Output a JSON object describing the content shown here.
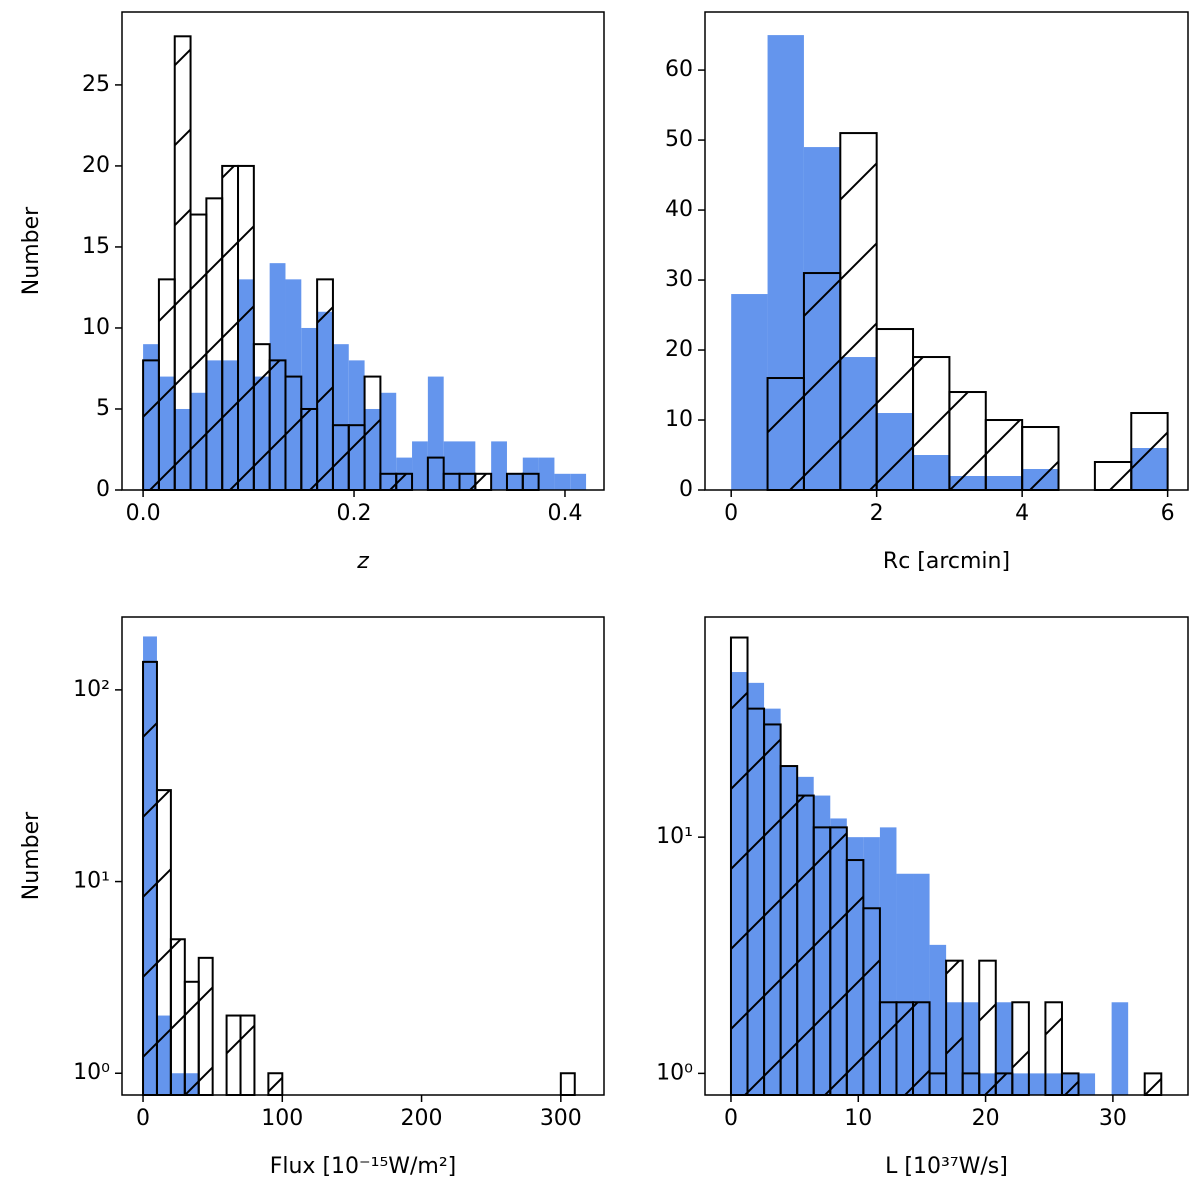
{
  "chart_data": [
    {
      "type": "histogram",
      "xlabel": "z",
      "xlabel_style": "italic",
      "ylabel": "Number",
      "bins": [
        0,
        0.015,
        0.03,
        0.045,
        0.06,
        0.075,
        0.09,
        0.105,
        0.12,
        0.135,
        0.15,
        0.165,
        0.18,
        0.195,
        0.21,
        0.225,
        0.24,
        0.255,
        0.27,
        0.285,
        0.3,
        0.315,
        0.33,
        0.345,
        0.36,
        0.375,
        0.39,
        0.405,
        0.42
      ],
      "series": [
        {
          "color": "#6495ed",
          "values": [
            9,
            7,
            5,
            6,
            8,
            8,
            13,
            7,
            14,
            13,
            10,
            11,
            9,
            8,
            5,
            6,
            2,
            3,
            7,
            3,
            3,
            0,
            3,
            1,
            2,
            2,
            1,
            1
          ]
        },
        {
          "color": "#000000",
          "hatch": "/",
          "values": [
            8,
            13,
            28,
            17,
            18,
            20,
            20,
            9,
            8,
            7,
            5,
            13,
            4,
            4,
            7,
            1,
            1,
            0,
            2,
            1,
            1,
            1,
            0,
            1,
            1,
            0,
            0,
            0
          ]
        }
      ],
      "xlim": [
        -0.02,
        0.437
      ],
      "xticks": [
        {
          "value": 0,
          "label": "0.0"
        },
        0.2,
        0.4
      ],
      "ylim": [
        0,
        29.5
      ],
      "yticks": [
        0,
        5,
        10,
        15,
        20,
        25
      ]
    },
    {
      "type": "histogram",
      "xlabel": "Rc [arcmin]",
      "bins": [
        0,
        0.5,
        1,
        1.5,
        2,
        2.5,
        3,
        3.5,
        4,
        4.5,
        5,
        5.5,
        6
      ],
      "series": [
        {
          "color": "#6495ed",
          "values": [
            28,
            65,
            49,
            19,
            11,
            5,
            2,
            2,
            3,
            0,
            0,
            6
          ]
        },
        {
          "color": "#000000",
          "hatch": "/",
          "values": [
            0,
            16,
            31,
            51,
            23,
            19,
            14,
            10,
            9,
            0,
            4,
            11
          ]
        }
      ],
      "xlim": [
        -0.36,
        6.28
      ],
      "xticks": [
        0,
        2,
        4,
        6
      ],
      "ylim": [
        0,
        68.3
      ],
      "yticks": [
        0,
        10,
        20,
        30,
        40,
        50,
        60
      ]
    },
    {
      "type": "histogram",
      "xlabel": "Flux [10⁻¹⁵W/m²]",
      "ylabel": "Number",
      "yscale": "log",
      "bins": [
        0,
        10,
        20,
        30,
        40,
        50,
        60,
        70,
        80,
        90,
        100,
        110,
        120,
        130,
        140,
        150,
        160,
        170,
        180,
        190,
        200,
        210,
        220,
        230,
        240,
        250,
        260,
        270,
        280,
        290,
        300,
        310
      ],
      "series": [
        {
          "color": "#6495ed",
          "values": [
            190,
            2,
            1,
            1,
            0,
            0,
            0,
            0,
            0,
            0,
            0,
            0,
            0,
            0,
            0,
            0,
            0,
            0,
            0,
            0,
            0,
            0,
            0,
            0,
            0,
            0,
            0,
            0,
            0,
            0,
            0
          ]
        },
        {
          "color": "#000000",
          "hatch": "/",
          "values": [
            140,
            30,
            5,
            3,
            4,
            0,
            2,
            2,
            0,
            1,
            0,
            0,
            0,
            0,
            0,
            0,
            0,
            0,
            0,
            0,
            0,
            0,
            0,
            0,
            0,
            0,
            0,
            0,
            0,
            0,
            1
          ]
        }
      ],
      "xlim": [
        -15.1,
        331
      ],
      "xticks": [
        0,
        100,
        200,
        300
      ],
      "ylim": [
        0.77,
        240
      ],
      "yticks": [
        {
          "value": 1,
          "label": "10⁰"
        },
        {
          "value": 10,
          "label": "10¹"
        },
        {
          "value": 100,
          "label": "10²"
        }
      ]
    },
    {
      "type": "histogram",
      "xlabel": "L [10³⁷W/s]",
      "yscale": "log",
      "bins": [
        0,
        1.3,
        2.6,
        3.9,
        5.2,
        6.5,
        7.8,
        9.1,
        10.4,
        11.7,
        13,
        14.3,
        15.6,
        16.9,
        18.2,
        19.5,
        20.8,
        22.1,
        23.4,
        24.7,
        26,
        27.3,
        28.6,
        29.9,
        31.2,
        32.5,
        33.8
      ],
      "series": [
        {
          "color": "#6495ed",
          "values": [
            50,
            45,
            35,
            20,
            18,
            15,
            12,
            10,
            10,
            11,
            7,
            7,
            3.5,
            2,
            2,
            1,
            2,
            1,
            1,
            1,
            1,
            1,
            0,
            2,
            0,
            0
          ]
        },
        {
          "color": "#000000",
          "hatch": "/",
          "values": [
            70,
            35,
            30,
            20,
            15,
            11,
            11,
            8,
            5,
            2,
            2,
            2,
            1,
            3,
            1,
            3,
            1,
            2,
            0,
            2,
            1,
            0,
            0,
            0,
            0,
            1
          ]
        }
      ],
      "xlim": [
        -2.04,
        35.9
      ],
      "xticks": [
        0,
        10,
        20,
        30
      ],
      "ylim": [
        0.81,
        85.5
      ],
      "yticks": [
        {
          "value": 1,
          "label": "10⁰"
        },
        {
          "value": 10,
          "label": "10¹"
        }
      ]
    }
  ]
}
